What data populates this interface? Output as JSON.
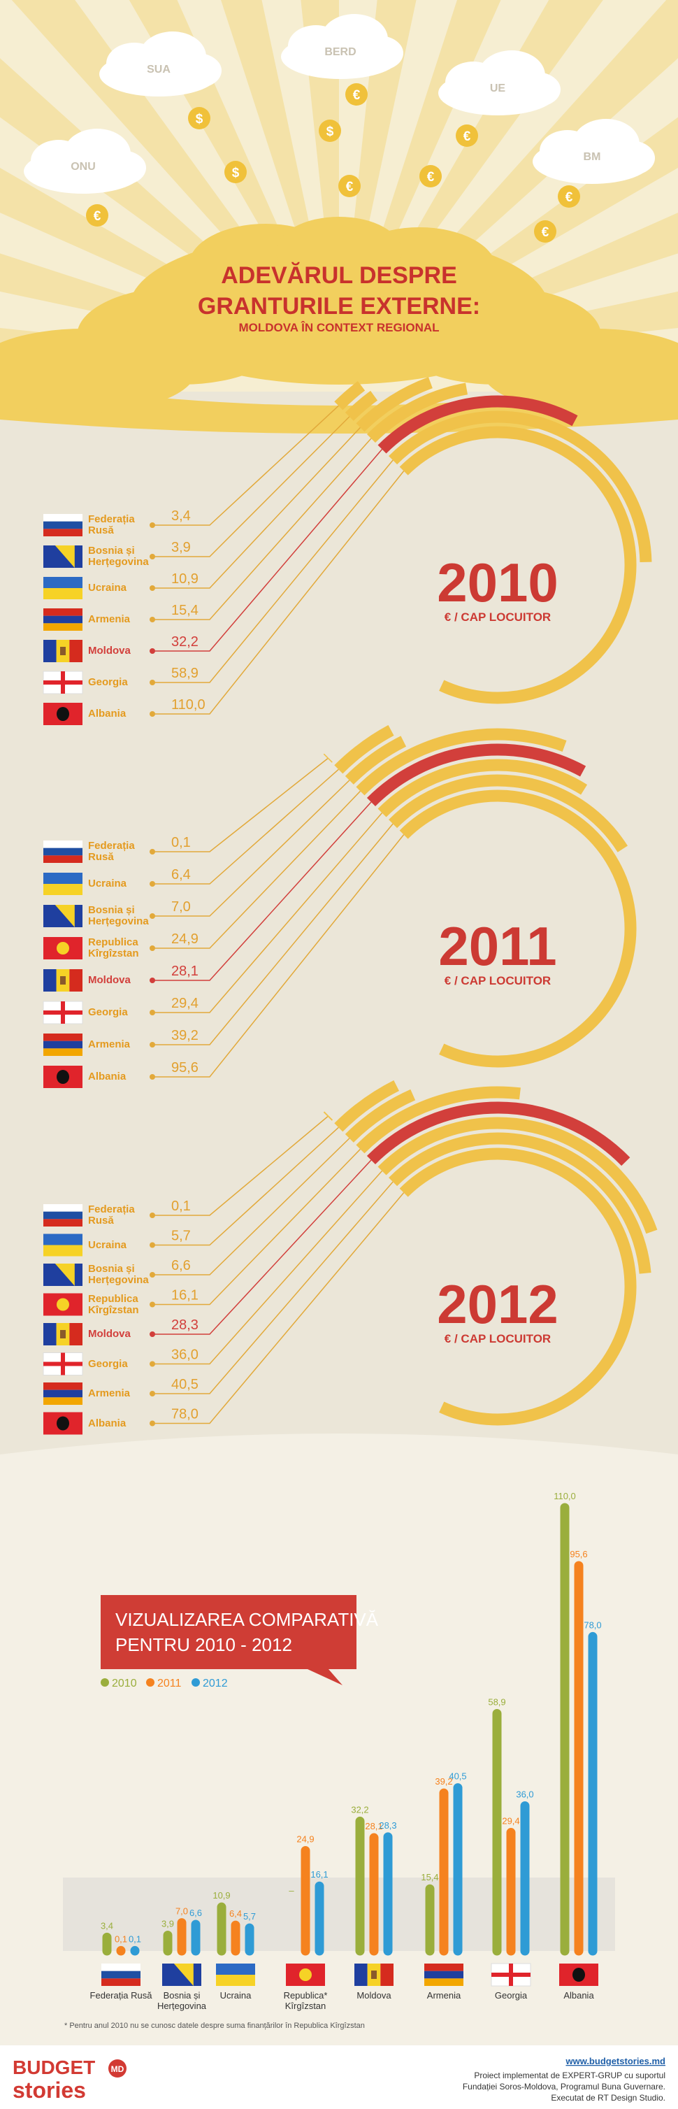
{
  "header": {
    "clouds": [
      "SUA",
      "BERD",
      "UE",
      "ONU",
      "BM"
    ],
    "coins": [
      "€",
      "$",
      "$",
      "€",
      "$",
      "€",
      "€",
      "€",
      "€",
      "€"
    ],
    "title": [
      "ADEVĂRUL DESPRE",
      "GRANTURILE EXTERNE:"
    ],
    "subtitle": "MOLDOVA ÎN CONTEXT REGIONAL"
  },
  "years": [
    {
      "year": "2010",
      "unit": "€ / CAP LOCUITOR",
      "items": [
        {
          "name": "Federația Rusă",
          "value": 3.4,
          "value_label": "3,4",
          "color": "#f0c24a"
        },
        {
          "name": "Bosnia și Herțegovina",
          "value": 3.9,
          "value_label": "3,9",
          "color": "#f0c24a"
        },
        {
          "name": "Ucraina",
          "value": 10.9,
          "value_label": "10,9",
          "color": "#f0c24a"
        },
        {
          "name": "Armenia",
          "value": 15.4,
          "value_label": "15,4",
          "color": "#f0c24a"
        },
        {
          "name": "Moldova",
          "value": 32.2,
          "value_label": "32,2",
          "color": "#d23f3b"
        },
        {
          "name": "Georgia",
          "value": 58.9,
          "value_label": "58,9",
          "color": "#f0c24a"
        },
        {
          "name": "Albania",
          "value": 110.0,
          "value_label": "110,0",
          "color": "#f0c24a"
        }
      ]
    },
    {
      "year": "2011",
      "unit": "€ / CAP LOCUITOR",
      "items": [
        {
          "name": "Federația Rusă",
          "value": 0.1,
          "value_label": "0,1",
          "color": "#f0c24a"
        },
        {
          "name": "Ucraina",
          "value": 6.4,
          "value_label": "6,4",
          "color": "#f0c24a"
        },
        {
          "name": "Bosnia și Herțegovina",
          "value": 7.0,
          "value_label": "7,0",
          "color": "#f0c24a"
        },
        {
          "name": "Republica Kîrgîzstan",
          "value": 24.9,
          "value_label": "24,9",
          "color": "#f0c24a"
        },
        {
          "name": "Moldova",
          "value": 28.1,
          "value_label": "28,1",
          "color": "#d23f3b"
        },
        {
          "name": "Georgia",
          "value": 29.4,
          "value_label": "29,4",
          "color": "#f0c24a"
        },
        {
          "name": "Armenia",
          "value": 39.2,
          "value_label": "39,2",
          "color": "#f0c24a"
        },
        {
          "name": "Albania",
          "value": 95.6,
          "value_label": "95,6",
          "color": "#f0c24a"
        }
      ]
    },
    {
      "year": "2012",
      "unit": "€ / CAP LOCUITOR",
      "items": [
        {
          "name": "Federația Rusă",
          "value": 0.1,
          "value_label": "0,1",
          "color": "#f0c24a"
        },
        {
          "name": "Ucraina",
          "value": 5.7,
          "value_label": "5,7",
          "color": "#f0c24a"
        },
        {
          "name": "Bosnia și Herțegovina",
          "value": 6.6,
          "value_label": "6,6",
          "color": "#f0c24a"
        },
        {
          "name": "Republica Kîrgîzstan",
          "value": 16.1,
          "value_label": "16,1",
          "color": "#f0c24a"
        },
        {
          "name": "Moldova",
          "value": 28.3,
          "value_label": "28,3",
          "color": "#d23f3b"
        },
        {
          "name": "Georgia",
          "value": 36.0,
          "value_label": "36,0",
          "color": "#f0c24a"
        },
        {
          "name": "Armenia",
          "value": 40.5,
          "value_label": "40,5",
          "color": "#f0c24a"
        },
        {
          "name": "Albania",
          "value": 78.0,
          "value_label": "78,0",
          "color": "#f0c24a"
        }
      ]
    }
  ],
  "chart_data": {
    "type": "bar",
    "title": [
      "VIZUALIZAREA COMPARATIVĂ",
      "PENTRU 2010 - 2012"
    ],
    "categories": [
      "Federația Rusă",
      "Bosnia și Herțegovina",
      "Ucraina",
      "Republica* Kîrgîzstan",
      "Moldova",
      "Armenia",
      "Georgia",
      "Albania"
    ],
    "series": [
      {
        "name": "2010",
        "color": "#9aae3c",
        "values": [
          3.4,
          3.9,
          10.9,
          null,
          32.2,
          15.4,
          58.9,
          110.0
        ],
        "value_labels": [
          "3,4",
          "3,9",
          "10,9",
          "–",
          "32,2",
          "15,4",
          "58,9",
          "110,0"
        ]
      },
      {
        "name": "2011",
        "color": "#f5821f",
        "values": [
          0.1,
          7.0,
          6.4,
          24.9,
          28.1,
          39.2,
          29.4,
          95.6
        ],
        "value_labels": [
          "0,1",
          "7,0",
          "6,4",
          "24,9",
          "28,1",
          "39,2",
          "29,4",
          "95,6"
        ]
      },
      {
        "name": "2012",
        "color": "#2f9bd5",
        "values": [
          0.1,
          6.6,
          5.7,
          16.1,
          28.3,
          40.5,
          36.0,
          78.0
        ],
        "value_labels": [
          "0,1",
          "6,6",
          "5,7",
          "16,1",
          "28,3",
          "40,5",
          "36,0",
          "78,0"
        ]
      }
    ],
    "note": "* Pentru anul 2010 nu se cunosc datele despre suma finanțărilor în Republica Kîrgîzstan"
  },
  "footer": {
    "logo": [
      "BUDGET",
      "stories"
    ],
    "logo_badge": "MD",
    "url": "www.budgetstories.md",
    "credits": [
      "Proiect implementat de EXPERT-GRUP cu suportul",
      "Fundației Soros-Moldova, Programul Buna Guvernare.",
      "Executat de RT Design Studio."
    ]
  }
}
